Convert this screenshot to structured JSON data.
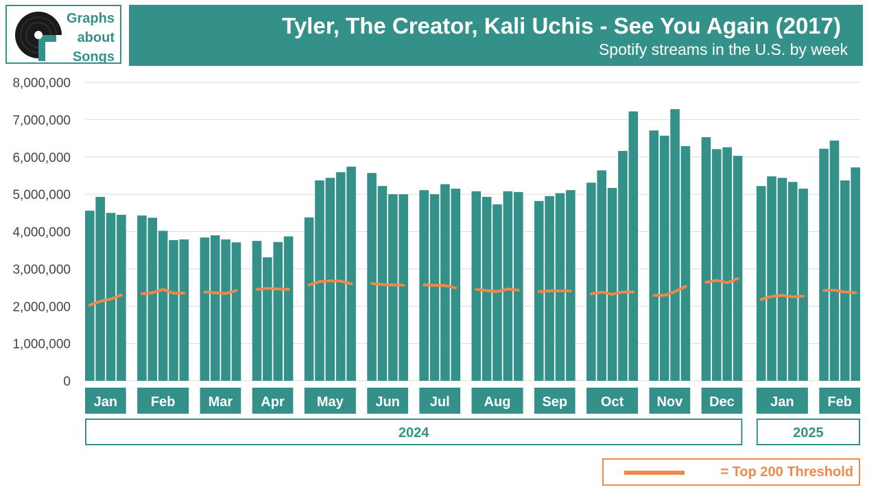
{
  "logo": {
    "line1": "Graphs",
    "line2": "about",
    "line3": "Songs"
  },
  "header": {
    "title": "Tyler, The Creator, Kali Uchis - See You Again (2017)",
    "subtitle": "Spotify streams in the U.S. by week"
  },
  "legend": {
    "label": "= Top 200 Threshold"
  },
  "colors": {
    "teal": "#34918a",
    "orange": "#f0884a"
  },
  "chart_data": {
    "type": "bar",
    "ylim": [
      0,
      8000000
    ],
    "yticks": [
      "0",
      "1,000,000",
      "2,000,000",
      "3,000,000",
      "4,000,000",
      "5,000,000",
      "6,000,000",
      "7,000,000",
      "8,000,000"
    ],
    "grid": true,
    "series": [
      {
        "name": "Streams",
        "kind": "bar"
      },
      {
        "name": "Top 200 Threshold",
        "kind": "line"
      }
    ],
    "months": [
      {
        "label": "Jan",
        "year": "2024",
        "bars": [
          4560000,
          4930000,
          4500000,
          4450000
        ],
        "threshold": [
          2030000,
          2130000,
          2190000,
          2300000
        ]
      },
      {
        "label": "Feb",
        "year": "2024",
        "bars": [
          4430000,
          4370000,
          4020000,
          3770000,
          3790000
        ],
        "threshold": [
          2330000,
          2360000,
          2450000,
          2350000,
          2350000
        ]
      },
      {
        "label": "Mar",
        "year": "2024",
        "bars": [
          3840000,
          3900000,
          3790000,
          3710000
        ],
        "threshold": [
          2380000,
          2360000,
          2340000,
          2420000
        ]
      },
      {
        "label": "Apr",
        "year": "2024",
        "bars": [
          3750000,
          3310000,
          3720000,
          3870000
        ],
        "threshold": [
          2450000,
          2480000,
          2460000,
          2450000
        ]
      },
      {
        "label": "May",
        "year": "2024",
        "bars": [
          4380000,
          5370000,
          5440000,
          5590000,
          5740000
        ],
        "threshold": [
          2570000,
          2660000,
          2680000,
          2670000,
          2600000
        ]
      },
      {
        "label": "Jun",
        "year": "2024",
        "bars": [
          5570000,
          5220000,
          5000000,
          5000000
        ],
        "threshold": [
          2610000,
          2580000,
          2570000,
          2560000
        ]
      },
      {
        "label": "Jul",
        "year": "2024",
        "bars": [
          5110000,
          5000000,
          5270000,
          5150000
        ],
        "threshold": [
          2570000,
          2560000,
          2550000,
          2490000
        ]
      },
      {
        "label": "Aug",
        "year": "2024",
        "bars": [
          5080000,
          4930000,
          4730000,
          5080000,
          5060000
        ],
        "threshold": [
          2450000,
          2420000,
          2390000,
          2460000,
          2430000
        ]
      },
      {
        "label": "Sep",
        "year": "2024",
        "bars": [
          4820000,
          4950000,
          5030000,
          5110000
        ],
        "threshold": [
          2390000,
          2410000,
          2410000,
          2410000
        ]
      },
      {
        "label": "Oct",
        "year": "2024",
        "bars": [
          5310000,
          5640000,
          5170000,
          6160000,
          7220000
        ],
        "threshold": [
          2330000,
          2380000,
          2320000,
          2380000,
          2380000
        ]
      },
      {
        "label": "Nov",
        "year": "2024",
        "bars": [
          6710000,
          6570000,
          7280000,
          6290000
        ],
        "threshold": [
          2290000,
          2290000,
          2390000,
          2530000
        ]
      },
      {
        "label": "Dec",
        "year": "2024",
        "bars": [
          6530000,
          6210000,
          6260000,
          6030000
        ],
        "threshold": [
          2640000,
          2690000,
          2630000,
          2740000
        ]
      },
      {
        "label": "Jan",
        "year": "2025",
        "bars": [
          5220000,
          5480000,
          5440000,
          5330000,
          5150000
        ],
        "threshold": [
          2180000,
          2260000,
          2290000,
          2250000,
          2270000
        ]
      },
      {
        "label": "Feb",
        "year": "2025",
        "bars": [
          6220000,
          6440000,
          5370000,
          5720000
        ],
        "threshold": [
          2420000,
          2430000,
          2380000,
          2360000
        ]
      }
    ],
    "years": [
      "2024",
      "2025"
    ]
  }
}
